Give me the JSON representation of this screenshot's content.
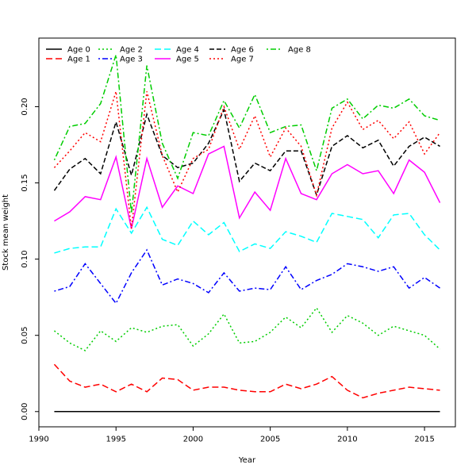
{
  "chart_data": {
    "type": "line",
    "title": "",
    "xlabel": "Year",
    "ylabel": "Stock mean weight",
    "xlim": [
      1990,
      2017
    ],
    "ylim": [
      -0.01,
      0.245
    ],
    "xticks": [
      1990,
      1995,
      2000,
      2005,
      2010,
      2015
    ],
    "xtick_labels": [
      "1990",
      "1995",
      "2000",
      "2005",
      "2010",
      "2015"
    ],
    "yticks": [
      0.0,
      0.05,
      0.1,
      0.15,
      0.2
    ],
    "ytick_labels": [
      "0.00",
      "0.05",
      "0.10",
      "0.15",
      "0.20"
    ],
    "grid": false,
    "legend_position": "top-left",
    "x": [
      1991,
      1992,
      1993,
      1994,
      1995,
      1996,
      1997,
      1998,
      1999,
      2000,
      2001,
      2002,
      2003,
      2004,
      2005,
      2006,
      2007,
      2008,
      2009,
      2010,
      2011,
      2012,
      2013,
      2014,
      2015,
      2016
    ],
    "series": [
      {
        "name": "Age 0",
        "color": "#000000",
        "dash": "solid",
        "values": [
          0,
          0,
          0,
          0,
          0,
          0,
          0,
          0,
          0,
          0,
          0,
          0,
          0,
          0,
          0,
          0,
          0,
          0,
          0,
          0,
          0,
          0,
          0,
          0,
          0,
          0
        ]
      },
      {
        "name": "Age 1",
        "color": "#ff0000",
        "dash": "long-dash",
        "values": [
          0.031,
          0.02,
          0.016,
          0.018,
          0.013,
          0.018,
          0.013,
          0.022,
          0.021,
          0.014,
          0.016,
          0.016,
          0.014,
          0.013,
          0.013,
          0.018,
          0.015,
          0.018,
          0.023,
          0.014,
          0.009,
          0.012,
          0.014,
          0.016,
          0.015,
          0.014
        ]
      },
      {
        "name": "Age 2",
        "color": "#00cd00",
        "dash": "dotted",
        "values": [
          0.053,
          0.045,
          0.04,
          0.053,
          0.046,
          0.055,
          0.052,
          0.056,
          0.057,
          0.043,
          0.051,
          0.064,
          0.045,
          0.046,
          0.052,
          0.062,
          0.055,
          0.068,
          0.052,
          0.063,
          0.058,
          0.05,
          0.056,
          0.053,
          0.05,
          0.041
        ]
      },
      {
        "name": "Age 3",
        "color": "#0000ff",
        "dash": "dot-dash",
        "values": [
          0.079,
          0.082,
          0.097,
          0.084,
          0.071,
          0.091,
          0.106,
          0.083,
          0.087,
          0.084,
          0.078,
          0.091,
          0.079,
          0.081,
          0.08,
          0.095,
          0.08,
          0.086,
          0.09,
          0.097,
          0.095,
          0.092,
          0.095,
          0.081,
          0.088,
          0.081
        ]
      },
      {
        "name": "Age 4",
        "color": "#00ffff",
        "dash": "long-dash",
        "values": [
          0.104,
          0.107,
          0.108,
          0.108,
          0.133,
          0.117,
          0.134,
          0.113,
          0.109,
          0.125,
          0.116,
          0.124,
          0.105,
          0.11,
          0.107,
          0.118,
          0.115,
          0.111,
          0.13,
          0.128,
          0.126,
          0.114,
          0.129,
          0.13,
          0.116,
          0.106
        ]
      },
      {
        "name": "Age 5",
        "color": "#ff00ff",
        "dash": "solid",
        "values": [
          0.125,
          0.131,
          0.141,
          0.139,
          0.167,
          0.12,
          0.166,
          0.134,
          0.148,
          0.143,
          0.169,
          0.174,
          0.127,
          0.144,
          0.132,
          0.166,
          0.143,
          0.139,
          0.156,
          0.162,
          0.156,
          0.158,
          0.143,
          0.165,
          0.157,
          0.137
        ]
      },
      {
        "name": "Age 6",
        "color": "#000000",
        "dash": "short-dash",
        "values": [
          0.145,
          0.159,
          0.166,
          0.156,
          0.19,
          0.155,
          0.195,
          0.168,
          0.16,
          0.163,
          0.176,
          0.198,
          0.151,
          0.163,
          0.158,
          0.171,
          0.171,
          0.142,
          0.174,
          0.181,
          0.173,
          0.178,
          0.161,
          0.174,
          0.18,
          0.174
        ]
      },
      {
        "name": "Age 7",
        "color": "#ff0000",
        "dash": "dotted",
        "values": [
          0.16,
          0.171,
          0.183,
          0.177,
          0.21,
          0.12,
          0.21,
          0.168,
          0.144,
          0.166,
          0.172,
          0.2,
          0.172,
          0.194,
          0.167,
          0.186,
          0.174,
          0.142,
          0.186,
          0.203,
          0.185,
          0.191,
          0.179,
          0.19,
          0.169,
          0.183
        ]
      },
      {
        "name": "Age 8",
        "color": "#00cd00",
        "dash": "dot-dash",
        "values": [
          0.165,
          0.187,
          0.189,
          0.202,
          0.234,
          0.13,
          0.227,
          0.176,
          0.153,
          0.183,
          0.181,
          0.204,
          0.186,
          0.208,
          0.183,
          0.187,
          0.188,
          0.158,
          0.199,
          0.205,
          0.192,
          0.201,
          0.199,
          0.205,
          0.194,
          0.191
        ]
      }
    ]
  }
}
